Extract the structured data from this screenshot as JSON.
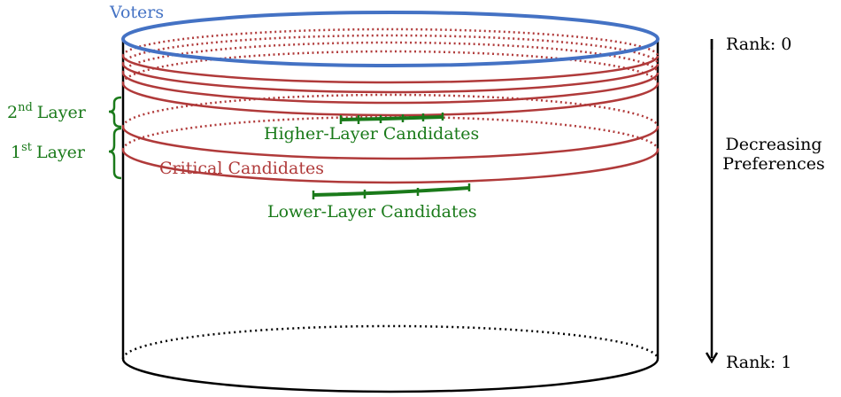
{
  "labels": {
    "voters": "Voters",
    "higher_layer": "Higher-Layer Candidates",
    "critical": "Critical Candidates",
    "lower_layer": "Lower-Layer Candidates",
    "layer2": {
      "ordinal": "2",
      "suffix": "nd",
      "word": "Layer"
    },
    "layer1": {
      "ordinal": "1",
      "suffix": "st",
      "word": "Layer"
    },
    "rank_top": "Rank: 0",
    "rank_bottom": "Rank: 1",
    "decreasing_line1": "Decreasing",
    "decreasing_line2": "Preferences"
  },
  "colors": {
    "voters": "#4472c4",
    "layers": "#b03a3a",
    "candidates": "#1a7a1a",
    "outline": "#000000"
  }
}
